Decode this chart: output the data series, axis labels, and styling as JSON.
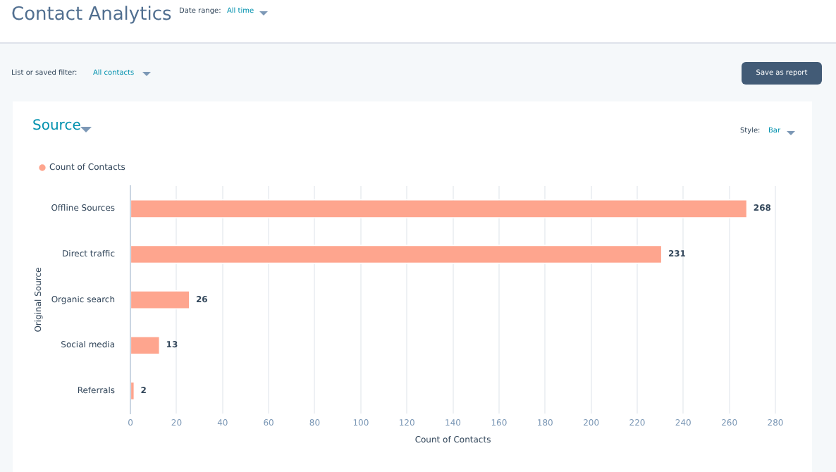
{
  "chart_data": {
    "type": "bar",
    "orientation": "horizontal",
    "title": "Contact Analytics",
    "subtitle": "Source",
    "annotations": [
      "Date range:",
      "All time",
      "List or saved filter:",
      "All contacts",
      "Save as report",
      "Style:",
      "Bar"
    ],
    "categories": [
      "Offline Sources",
      "Direct traffic",
      "Organic search",
      "Social media",
      "Referrals"
    ],
    "series": [
      {
        "name": "Count of Contacts",
        "color": "#fea58e",
        "values": [
          268,
          231,
          26,
          13,
          2
        ]
      }
    ],
    "xlim": [
      0,
      280
    ],
    "xticks": [
      0,
      20,
      40,
      60,
      80,
      100,
      120,
      140,
      160,
      180,
      200,
      220,
      240,
      260,
      280
    ],
    "xlabel": "Count of Contacts",
    "ylabel": "Original Source",
    "grid": "x",
    "legend": "top left",
    "data_labels": true
  }
}
